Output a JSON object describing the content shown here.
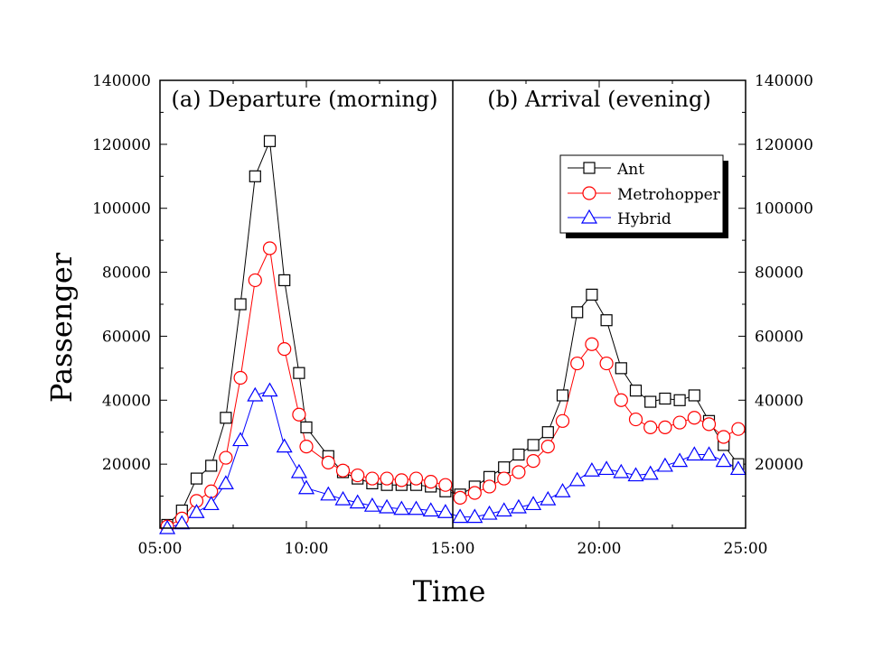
{
  "chart_data": {
    "type": "line",
    "xlabel": "Time",
    "ylabel": "Passenger",
    "x_ticks": [
      "05:00",
      "10:00",
      "15:00",
      "20:00",
      "25:00"
    ],
    "y_ticks": [
      "20000",
      "40000",
      "60000",
      "80000",
      "100000",
      "120000",
      "140000"
    ],
    "xlim": [
      5,
      25
    ],
    "ylim": [
      0,
      140000
    ],
    "divider_x": 15,
    "panels": [
      {
        "label": "(a) Departure (morning)"
      },
      {
        "label": "(b) Arrival (evening)"
      }
    ],
    "legend": {
      "position": "top-right",
      "shadow": true
    },
    "grid": false,
    "series": [
      {
        "name": "Ant",
        "color": "#000000",
        "marker": "square",
        "x": [
          5.25,
          5.75,
          6.25,
          6.75,
          7.25,
          7.75,
          8.25,
          8.75,
          9.25,
          9.75,
          10.0,
          10.75,
          11.25,
          11.75,
          12.25,
          12.75,
          13.25,
          13.75,
          14.25,
          14.75,
          15.25,
          15.75,
          16.25,
          16.75,
          17.25,
          17.75,
          18.25,
          18.75,
          19.25,
          19.75,
          20.25,
          20.75,
          21.25,
          21.75,
          22.25,
          22.75,
          23.25,
          23.75,
          24.25,
          24.75
        ],
        "y": [
          1000,
          5500,
          15500,
          19500,
          34500,
          70000,
          110000,
          121000,
          77500,
          48500,
          31500,
          22500,
          17500,
          15500,
          14000,
          13500,
          13500,
          13500,
          13000,
          11500,
          10500,
          13000,
          16000,
          19000,
          23000,
          26000,
          30000,
          41500,
          67500,
          73000,
          65000,
          50000,
          43000,
          39500,
          40500,
          40000,
          41500,
          33500,
          26000,
          20000
        ]
      },
      {
        "name": "Metrohopper",
        "color": "#ff0000",
        "marker": "circle",
        "x": [
          5.25,
          5.75,
          6.25,
          6.75,
          7.25,
          7.75,
          8.25,
          8.75,
          9.25,
          9.75,
          10.0,
          10.75,
          11.25,
          11.75,
          12.25,
          12.75,
          13.25,
          13.75,
          14.25,
          14.75,
          15.25,
          15.75,
          16.25,
          16.75,
          17.25,
          17.75,
          18.25,
          18.75,
          19.25,
          19.75,
          20.25,
          20.75,
          21.25,
          21.75,
          22.25,
          22.75,
          23.25,
          23.75,
          24.25,
          24.75
        ],
        "y": [
          500,
          3000,
          8500,
          11500,
          22000,
          47000,
          77500,
          87500,
          56000,
          35500,
          25500,
          20500,
          18000,
          16500,
          15500,
          15500,
          15000,
          15500,
          14500,
          13500,
          9500,
          11000,
          13000,
          15500,
          17500,
          21000,
          25500,
          33500,
          51500,
          57500,
          51500,
          40000,
          34000,
          31500,
          31500,
          33000,
          34500,
          32500,
          28500,
          31000
        ]
      },
      {
        "name": "Hybrid",
        "color": "#0000ff",
        "marker": "triangle",
        "x": [
          5.25,
          5.75,
          6.25,
          6.75,
          7.25,
          7.75,
          8.25,
          8.75,
          9.25,
          9.75,
          10.0,
          10.75,
          11.25,
          11.75,
          12.25,
          12.75,
          13.25,
          13.75,
          14.25,
          14.75,
          15.25,
          15.75,
          16.25,
          16.75,
          17.25,
          17.75,
          18.25,
          18.75,
          19.25,
          19.75,
          20.25,
          20.75,
          21.25,
          21.75,
          22.25,
          22.75,
          23.25,
          23.75,
          24.25,
          24.75
        ],
        "y": [
          0,
          1500,
          5000,
          7500,
          14000,
          27500,
          41500,
          43000,
          25500,
          17500,
          12500,
          10500,
          9000,
          8000,
          7000,
          6500,
          6000,
          6000,
          5500,
          5000,
          3500,
          3500,
          4500,
          5500,
          6500,
          7500,
          9000,
          11500,
          15000,
          18000,
          18500,
          17500,
          16500,
          17000,
          19500,
          21000,
          23000,
          23000,
          21000,
          18500
        ]
      }
    ]
  }
}
